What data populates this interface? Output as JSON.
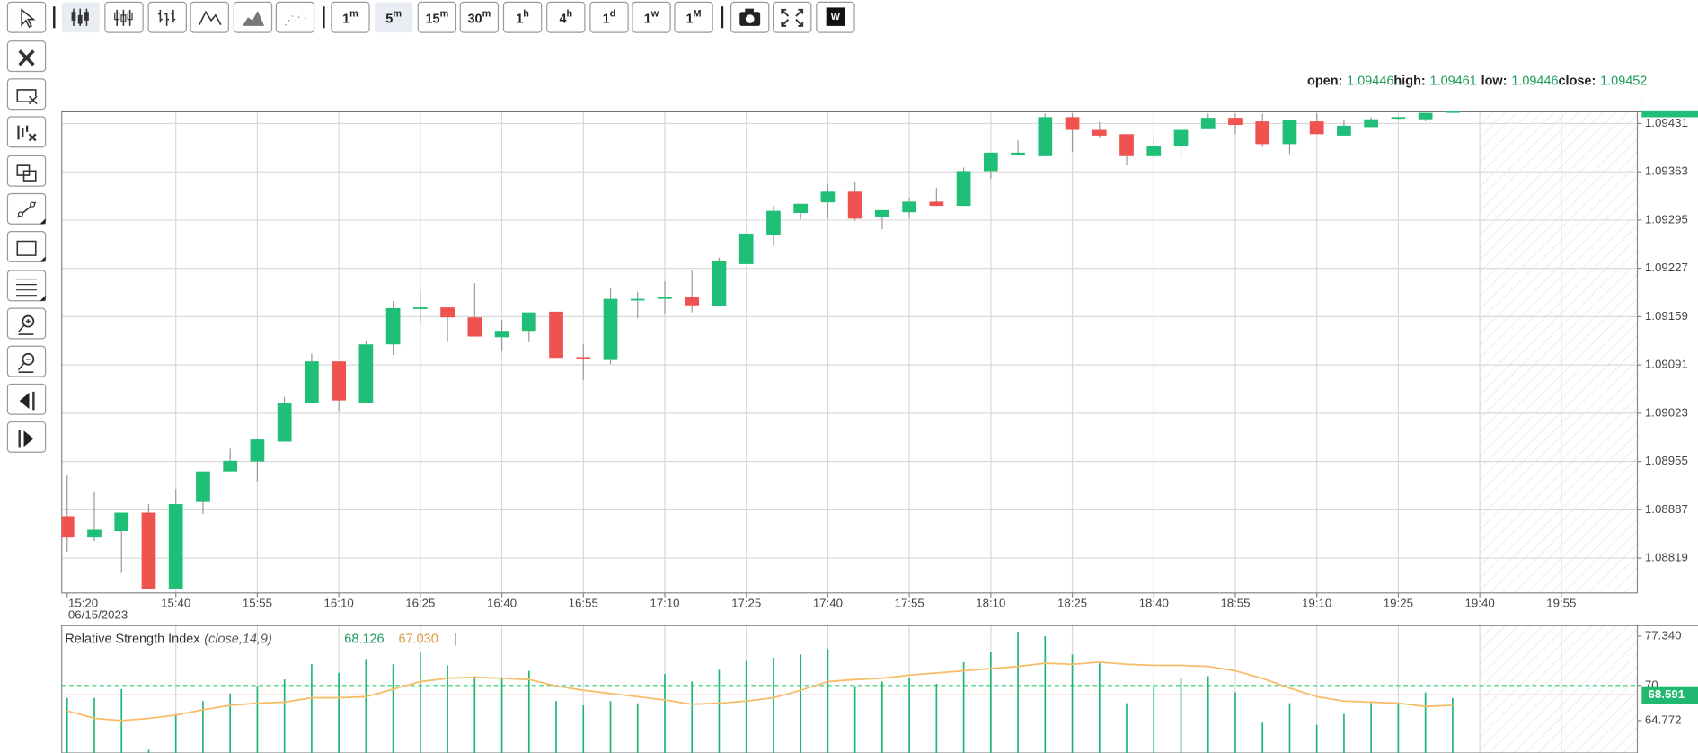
{
  "toolbar": {
    "timeframes": [
      {
        "n": "1",
        "u": "m"
      },
      {
        "n": "5",
        "u": "m"
      },
      {
        "n": "15",
        "u": "m"
      },
      {
        "n": "30",
        "u": "m"
      },
      {
        "n": "1",
        "u": "h"
      },
      {
        "n": "4",
        "u": "h"
      },
      {
        "n": "1",
        "u": "d"
      },
      {
        "n": "1",
        "u": "w"
      },
      {
        "n": "1",
        "u": "M"
      }
    ],
    "logo": "W"
  },
  "chart_data": [
    {
      "type": "candlestick",
      "categories": [
        "15:20",
        "15:25",
        "15:30",
        "15:35",
        "15:40",
        "15:45",
        "15:50",
        "15:55",
        "16:00",
        "16:05",
        "16:10",
        "16:15",
        "16:20",
        "16:25",
        "16:30",
        "16:35",
        "16:40",
        "16:45",
        "16:50",
        "16:55",
        "17:00",
        "17:05",
        "17:10",
        "17:15",
        "17:20",
        "17:25",
        "17:30",
        "17:35",
        "17:40",
        "17:45",
        "17:50",
        "17:55",
        "18:00",
        "18:05",
        "18:10",
        "18:15",
        "18:20",
        "18:25",
        "18:30",
        "18:35",
        "18:40",
        "18:45",
        "18:50",
        "18:55",
        "19:00",
        "19:05",
        "19:10",
        "19:15",
        "19:20",
        "19:25",
        "19:30",
        "19:35"
      ],
      "open": [
        1.08878,
        1.08848,
        1.08857,
        1.08883,
        1.08775,
        1.08898,
        1.08941,
        1.08955,
        1.08983,
        1.09037,
        1.09096,
        1.09038,
        1.0912,
        1.09171,
        1.09172,
        1.09158,
        1.0913,
        1.09139,
        1.09166,
        1.09102,
        1.09098,
        1.09183,
        1.09184,
        1.09187,
        1.09174,
        1.09233,
        1.09274,
        1.09305,
        1.0932,
        1.09335,
        1.093,
        1.09306,
        1.09321,
        1.09315,
        1.09364,
        1.09387,
        1.09385,
        1.0944,
        1.09422,
        1.09416,
        1.09385,
        1.09399,
        1.09423,
        1.09439,
        1.09434,
        1.09402,
        1.09434,
        1.09414,
        1.09426,
        1.09439,
        1.09437,
        1.09446
      ],
      "high": [
        1.08935,
        1.08912,
        1.08883,
        1.08895,
        1.08916,
        1.08941,
        1.08973,
        1.08986,
        1.09046,
        1.09107,
        1.09096,
        1.09125,
        1.09181,
        1.09194,
        1.09172,
        1.09206,
        1.09154,
        1.09165,
        1.09166,
        1.0912,
        1.092,
        1.09194,
        1.09209,
        1.09224,
        1.09242,
        1.09276,
        1.09315,
        1.09318,
        1.09346,
        1.09349,
        1.09309,
        1.09327,
        1.0934,
        1.09369,
        1.0939,
        1.09407,
        1.09445,
        1.09445,
        1.09433,
        1.09416,
        1.09407,
        1.09425,
        1.09445,
        1.09445,
        1.09445,
        1.09436,
        1.09445,
        1.09436,
        1.0944,
        1.0944,
        1.09446,
        1.09461
      ],
      "low": [
        1.08828,
        1.08843,
        1.08798,
        1.08775,
        1.08775,
        1.08881,
        1.08941,
        1.08927,
        1.08983,
        1.09037,
        1.09026,
        1.09038,
        1.09105,
        1.09152,
        1.09123,
        1.09131,
        1.0911,
        1.09123,
        1.09101,
        1.0907,
        1.09092,
        1.09157,
        1.09163,
        1.09165,
        1.09174,
        1.09233,
        1.09259,
        1.09296,
        1.09297,
        1.09294,
        1.09282,
        1.09297,
        1.09315,
        1.09315,
        1.09353,
        1.09387,
        1.09385,
        1.09391,
        1.0941,
        1.09372,
        1.09382,
        1.09384,
        1.09423,
        1.09416,
        1.09398,
        1.09388,
        1.09416,
        1.09414,
        1.09426,
        1.09437,
        1.09434,
        1.09446
      ],
      "close": [
        1.08848,
        1.08859,
        1.08883,
        1.08775,
        1.08895,
        1.08941,
        1.08956,
        1.08986,
        1.09038,
        1.09096,
        1.09041,
        1.0912,
        1.09171,
        1.09172,
        1.09158,
        1.09131,
        1.09139,
        1.09165,
        1.09101,
        1.09099,
        1.09184,
        1.09184,
        1.09187,
        1.09175,
        1.09238,
        1.09276,
        1.09308,
        1.09318,
        1.09335,
        1.09297,
        1.09309,
        1.09321,
        1.09315,
        1.09364,
        1.0939,
        1.0939,
        1.0944,
        1.09422,
        1.09414,
        1.09385,
        1.09399,
        1.09422,
        1.09439,
        1.09429,
        1.09402,
        1.09436,
        1.09416,
        1.09428,
        1.09437,
        1.0944,
        1.09446,
        1.09452
      ],
      "up_color": "#1fbf77",
      "down_color": "#ef5350",
      "xlim": [
        "15:19",
        "20:09"
      ],
      "xticks": [
        "15:20",
        "15:40",
        "15:55",
        "16:10",
        "16:25",
        "16:40",
        "16:55",
        "17:10",
        "17:25",
        "17:40",
        "17:55",
        "18:10",
        "18:25",
        "18:40",
        "18:55",
        "19:10",
        "19:25",
        "19:40",
        "19:55"
      ],
      "date_label": "06/15/2023",
      "ylim": [
        1.0877,
        1.09448
      ],
      "yticks": [
        1.08819,
        1.08887,
        1.08955,
        1.09023,
        1.09091,
        1.09159,
        1.09227,
        1.09295,
        1.09363,
        1.09431
      ],
      "grid": true,
      "header_labels": [
        "open:",
        "high:",
        "low:",
        "close:"
      ]
    },
    {
      "type": "line",
      "title": "Relative Strength Index",
      "params": "(close,14,9)",
      "series": [
        {
          "color": "#1fb870",
          "style": "sticks",
          "values": [
            68.16,
            68.16,
            69.44,
            60.42,
            65.74,
            67.67,
            68.8,
            69.93,
            70.89,
            73.15,
            71.86,
            73.96,
            73.15,
            74.92,
            72.99,
            71.38,
            71.22,
            72.18,
            67.67,
            67.03,
            67.67,
            67.35,
            71.7,
            70.57,
            72.34,
            73.63,
            74.12,
            74.6,
            75.41,
            69.93,
            70.57,
            71.06,
            70.25,
            73.47,
            74.92,
            77.98,
            77.34,
            74.6,
            73.31,
            67.35,
            69.93,
            71.06,
            71.38,
            68.96,
            64.45,
            67.35,
            64.13,
            65.74,
            67.35,
            67.51,
            68.96,
            68.126
          ]
        },
        {
          "color": "#f6bd6a",
          "style": "line",
          "values": [
            66.22,
            65.09,
            64.77,
            65.09,
            65.58,
            66.38,
            67.03,
            67.35,
            67.51,
            68.16,
            68.16,
            68.32,
            69.44,
            70.57,
            71.06,
            71.22,
            71.06,
            70.89,
            69.93,
            69.28,
            68.8,
            68.32,
            67.83,
            67.19,
            67.35,
            67.67,
            68.16,
            69.28,
            70.57,
            70.89,
            71.06,
            71.54,
            71.86,
            72.18,
            72.51,
            72.83,
            73.31,
            73.15,
            73.47,
            73.15,
            72.99,
            72.99,
            72.83,
            72.18,
            71.06,
            69.61,
            68.32,
            67.67,
            67.51,
            67.35,
            66.87,
            67.03
          ],
          "last_label": "67.030"
        }
      ],
      "ylim": [
        59.94,
        78.95
      ],
      "yticks": [
        {
          "value": 77.34,
          "label": "77.340"
        },
        70,
        64.772
      ],
      "overbought_level": 70,
      "price_tag": 68.591,
      "separator": "|"
    }
  ]
}
